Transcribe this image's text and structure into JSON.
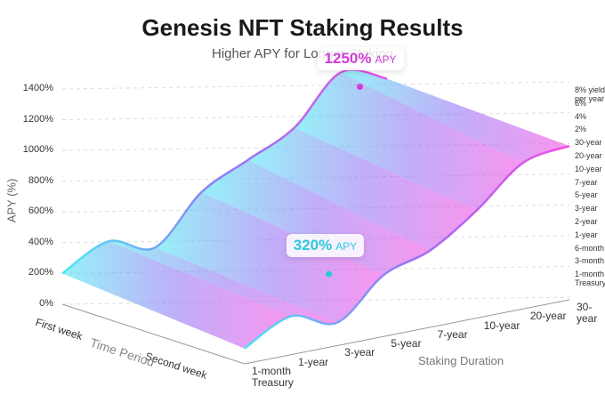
{
  "chart_data": {
    "type": "surface",
    "title": "Genesis NFT Staking Results",
    "subtitle": "Higher APY for Longer Staking",
    "y_label": "APY (%)",
    "x_label": "Time Period",
    "depth_label": "Staking Duration",
    "x_categories": [
      "First week",
      "Second week"
    ],
    "depth_categories": [
      "1-month Treasury",
      "1-year",
      "3-year",
      "5-year",
      "7-year",
      "10-year",
      "20-year",
      "30-year"
    ],
    "values": [
      [
        200,
        350,
        250,
        550,
        700,
        850,
        1150,
        1050
      ],
      [
        100,
        250,
        150,
        400,
        500,
        700,
        950,
        1000
      ]
    ],
    "colors": [
      "#3fe6f2",
      "#8c6cf4",
      "#f23fe2"
    ],
    "ylim": [
      0,
      1400
    ],
    "yticks": [
      {
        "value": 0,
        "label": "0%"
      },
      {
        "value": 200,
        "label": "200%"
      },
      {
        "value": 400,
        "label": "400%"
      },
      {
        "value": 600,
        "label": "600%"
      },
      {
        "value": 800,
        "label": "800%"
      },
      {
        "value": 1000,
        "label": "1000%"
      },
      {
        "value": 1200,
        "label": "1200%"
      },
      {
        "value": 1400,
        "label": "1400%"
      }
    ],
    "grid": true,
    "right_labels": [
      "8% yield per year",
      "6%",
      "4%",
      "2%",
      "30-year",
      "20-year",
      "10-year",
      "7-year",
      "5-year",
      "3-year",
      "2-year",
      "1-year",
      "6-month",
      "3-month",
      "1-month Treasury"
    ],
    "annotations": [
      {
        "value": 320,
        "label": "320%",
        "unit": "APY",
        "color": "#2ec8dc"
      },
      {
        "value": 1250,
        "label": "1250%",
        "unit": "APY",
        "color": "#d23cd8"
      }
    ]
  }
}
